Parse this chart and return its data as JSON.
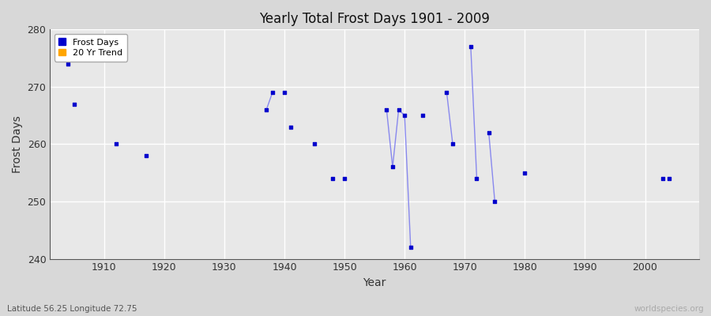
{
  "title": "Yearly Total Frost Days 1901 - 2009",
  "xlabel": "Year",
  "ylabel": "Frost Days",
  "xlim": [
    1901,
    2009
  ],
  "ylim": [
    240,
    280
  ],
  "yticks": [
    240,
    250,
    260,
    270,
    280
  ],
  "xticks": [
    1910,
    1920,
    1930,
    1940,
    1950,
    1960,
    1970,
    1980,
    1990,
    2000
  ],
  "bg_color": "#d8d8d8",
  "plot_bg_color": "#e8e8e8",
  "grid_color": "#ffffff",
  "point_color": "#0000cc",
  "line_color": "#8888ee",
  "point_size": 6,
  "subtitle": "Latitude 56.25 Longitude 72.75",
  "watermark": "worldspecies.org",
  "data_points": [
    [
      1904,
      274
    ],
    [
      1905,
      267
    ],
    [
      1912,
      260
    ],
    [
      1917,
      258
    ],
    [
      1937,
      266
    ],
    [
      1938,
      269
    ],
    [
      1940,
      269
    ],
    [
      1941,
      263
    ],
    [
      1945,
      260
    ],
    [
      1948,
      254
    ],
    [
      1950,
      254
    ],
    [
      1957,
      266
    ],
    [
      1958,
      256
    ],
    [
      1959,
      266
    ],
    [
      1960,
      265
    ],
    [
      1961,
      242
    ],
    [
      1963,
      265
    ],
    [
      1967,
      269
    ],
    [
      1968,
      260
    ],
    [
      1971,
      277
    ],
    [
      1972,
      254
    ],
    [
      1974,
      262
    ],
    [
      1975,
      250
    ],
    [
      1980,
      255
    ],
    [
      2003,
      254
    ],
    [
      2004,
      254
    ]
  ],
  "connected_groups": [
    [
      1937,
      1938
    ],
    [
      1957,
      1958,
      1959,
      1960,
      1961
    ],
    [
      1963,
      1963
    ],
    [
      1967,
      1968
    ],
    [
      1971,
      1972
    ],
    [
      1974,
      1975
    ]
  ]
}
